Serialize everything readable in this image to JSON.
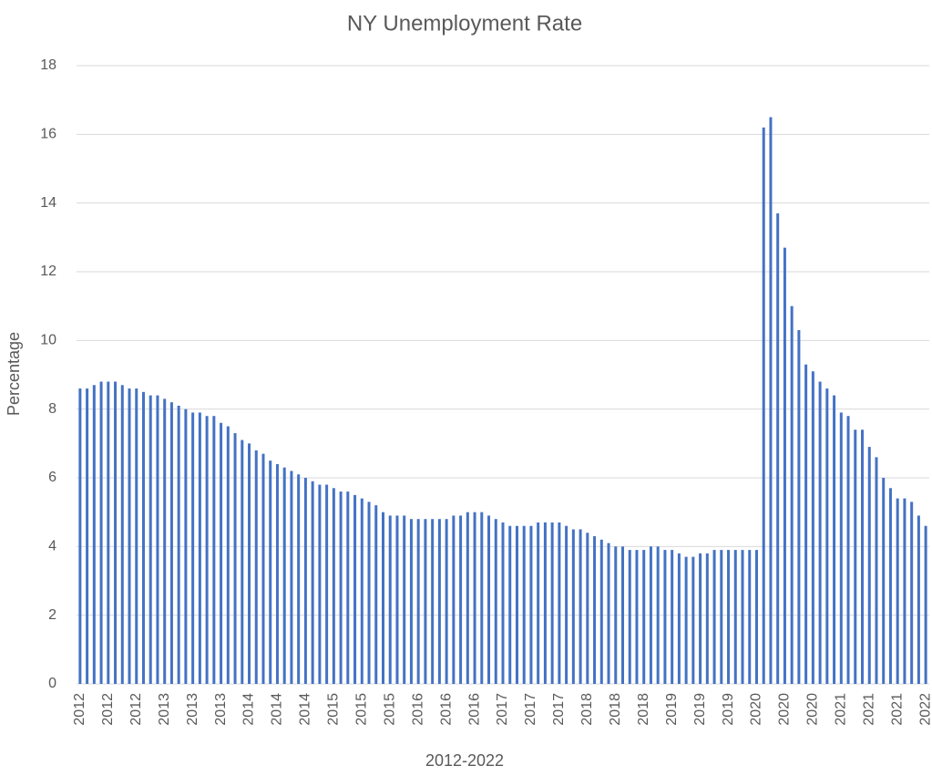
{
  "chart_data": {
    "type": "bar",
    "title": "NY Unemployment Rate",
    "x_label": "2012-2022",
    "y_label": "Percentage",
    "categories": [
      "2012",
      null,
      null,
      null,
      "2012",
      null,
      null,
      null,
      "2012",
      null,
      null,
      null,
      "2013",
      null,
      null,
      null,
      "2013",
      null,
      null,
      null,
      "2013",
      null,
      null,
      null,
      "2014",
      null,
      null,
      null,
      "2014",
      null,
      null,
      null,
      "2014",
      null,
      null,
      null,
      "2015",
      null,
      null,
      null,
      "2015",
      null,
      null,
      null,
      "2015",
      null,
      null,
      null,
      "2016",
      null,
      null,
      null,
      "2016",
      null,
      null,
      null,
      "2016",
      null,
      null,
      null,
      "2017",
      null,
      null,
      null,
      "2017",
      null,
      null,
      null,
      "2017",
      null,
      null,
      null,
      "2018",
      null,
      null,
      null,
      "2018",
      null,
      null,
      null,
      "2018",
      null,
      null,
      null,
      "2019",
      null,
      null,
      null,
      "2019",
      null,
      null,
      null,
      "2019",
      null,
      null,
      null,
      "2020",
      null,
      null,
      null,
      "2020",
      null,
      null,
      null,
      "2020",
      null,
      null,
      null,
      "2021",
      null,
      null,
      null,
      "2021",
      null,
      null,
      null,
      "2021",
      null,
      null,
      null,
      "2022"
    ],
    "values": [
      8.6,
      8.6,
      8.7,
      8.8,
      8.8,
      8.8,
      8.7,
      8.6,
      8.6,
      8.5,
      8.4,
      8.4,
      8.3,
      8.2,
      8.1,
      8.0,
      7.9,
      7.9,
      7.8,
      7.8,
      7.6,
      7.5,
      7.3,
      7.1,
      7.0,
      6.8,
      6.7,
      6.5,
      6.4,
      6.3,
      6.2,
      6.1,
      6.0,
      5.9,
      5.8,
      5.8,
      5.7,
      5.6,
      5.6,
      5.5,
      5.4,
      5.3,
      5.2,
      5.0,
      4.9,
      4.9,
      4.9,
      4.8,
      4.8,
      4.8,
      4.8,
      4.8,
      4.8,
      4.9,
      4.9,
      5.0,
      5.0,
      5.0,
      4.9,
      4.8,
      4.7,
      4.6,
      4.6,
      4.6,
      4.6,
      4.7,
      4.7,
      4.7,
      4.7,
      4.6,
      4.5,
      4.5,
      4.4,
      4.3,
      4.2,
      4.1,
      4.0,
      4.0,
      3.9,
      3.9,
      3.9,
      4.0,
      4.0,
      3.9,
      3.9,
      3.8,
      3.7,
      3.7,
      3.8,
      3.8,
      3.9,
      3.9,
      3.9,
      3.9,
      3.9,
      3.9,
      3.9,
      16.2,
      16.5,
      13.7,
      12.7,
      11.0,
      10.3,
      9.3,
      9.1,
      8.8,
      8.6,
      8.4,
      7.9,
      7.8,
      7.4,
      7.4,
      6.9,
      6.6,
      6.0,
      5.7,
      5.4,
      5.4,
      5.3,
      4.9,
      4.6
    ],
    "color": "#4472c4",
    "ylim": [
      0,
      18
    ],
    "yticks": [
      0,
      2,
      4,
      6,
      8,
      10,
      12,
      14,
      16,
      18
    ],
    "grid": true
  }
}
